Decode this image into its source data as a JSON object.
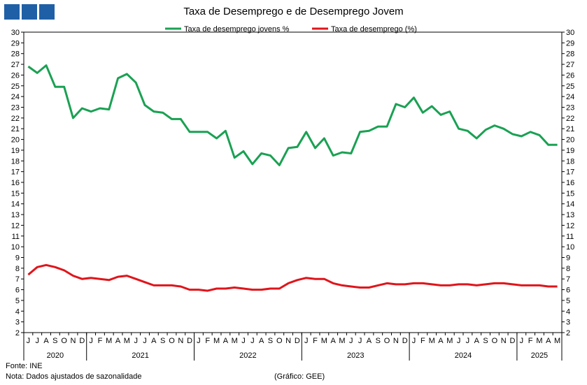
{
  "logo": {
    "icon": "brand-logo-icon",
    "color": "#1f5fa6"
  },
  "chart_data": {
    "type": "line",
    "title": "Taxa de Desemprego e de Desemprego Jovem",
    "ylim": [
      2,
      30
    ],
    "yticks": [
      2,
      3,
      4,
      5,
      6,
      7,
      8,
      9,
      10,
      11,
      12,
      13,
      14,
      15,
      16,
      17,
      18,
      19,
      20,
      21,
      22,
      23,
      24,
      25,
      26,
      27,
      28,
      29,
      30
    ],
    "legend_position": "top-center",
    "grid": false,
    "month_labels": [
      "J",
      "J",
      "A",
      "S",
      "O",
      "N",
      "D",
      "J",
      "F",
      "M",
      "A",
      "M",
      "J",
      "J",
      "A",
      "S",
      "O",
      "N",
      "D",
      "J",
      "F",
      "M",
      "A",
      "M",
      "J",
      "J",
      "A",
      "S",
      "O",
      "N",
      "D",
      "J",
      "F",
      "M",
      "A",
      "M",
      "J",
      "J",
      "A",
      "S",
      "O",
      "N",
      "D",
      "J",
      "F",
      "M",
      "A",
      "M",
      "J",
      "J",
      "A",
      "S",
      "O",
      "N",
      "D",
      "J",
      "F",
      "M",
      "A",
      "M"
    ],
    "years": [
      {
        "label": "2020",
        "start": 0,
        "end": 7
      },
      {
        "label": "2021",
        "start": 7,
        "end": 19
      },
      {
        "label": "2022",
        "start": 19,
        "end": 31
      },
      {
        "label": "2023",
        "start": 31,
        "end": 43
      },
      {
        "label": "2024",
        "start": 43,
        "end": 55
      },
      {
        "label": "2025",
        "start": 55,
        "end": 60
      }
    ],
    "series": [
      {
        "name": "Taxa de desemprego jovens %",
        "color": "#1aa153",
        "values": [
          26.8,
          26.2,
          26.9,
          24.9,
          24.9,
          22.0,
          22.9,
          22.6,
          22.9,
          22.8,
          25.7,
          26.1,
          25.3,
          23.2,
          22.6,
          22.5,
          21.9,
          21.9,
          20.7,
          20.7,
          20.7,
          20.1,
          20.8,
          18.3,
          18.9,
          17.7,
          18.7,
          18.5,
          17.6,
          19.2,
          19.3,
          20.7,
          19.2,
          20.1,
          18.5,
          18.8,
          18.7,
          20.7,
          20.8,
          21.2,
          21.2,
          23.3,
          23.0,
          23.9,
          22.5,
          23.1,
          22.3,
          22.6,
          21.0,
          20.8,
          20.1,
          20.9,
          21.3,
          21.0,
          20.5,
          20.3,
          20.7,
          20.4,
          19.5,
          19.5
        ]
      },
      {
        "name": "Taxa de desemprego (%)",
        "color": "#e0151b",
        "values": [
          7.4,
          8.1,
          8.3,
          8.1,
          7.8,
          7.3,
          7.0,
          7.1,
          7.0,
          6.9,
          7.2,
          7.3,
          7.0,
          6.7,
          6.4,
          6.4,
          6.4,
          6.3,
          6.0,
          6.0,
          5.9,
          6.1,
          6.1,
          6.2,
          6.1,
          6.0,
          6.0,
          6.1,
          6.1,
          6.6,
          6.9,
          7.1,
          7.0,
          7.0,
          6.6,
          6.4,
          6.3,
          6.2,
          6.2,
          6.4,
          6.6,
          6.5,
          6.5,
          6.6,
          6.6,
          6.5,
          6.4,
          6.4,
          6.5,
          6.5,
          6.4,
          6.5,
          6.6,
          6.6,
          6.5,
          6.4,
          6.4,
          6.4,
          6.3,
          6.3
        ]
      }
    ]
  },
  "footer": {
    "source": "Fonte: INE",
    "note": "Nota: Dados ajustados de sazonalidade",
    "credit": "(Gráfico: GEE)"
  }
}
